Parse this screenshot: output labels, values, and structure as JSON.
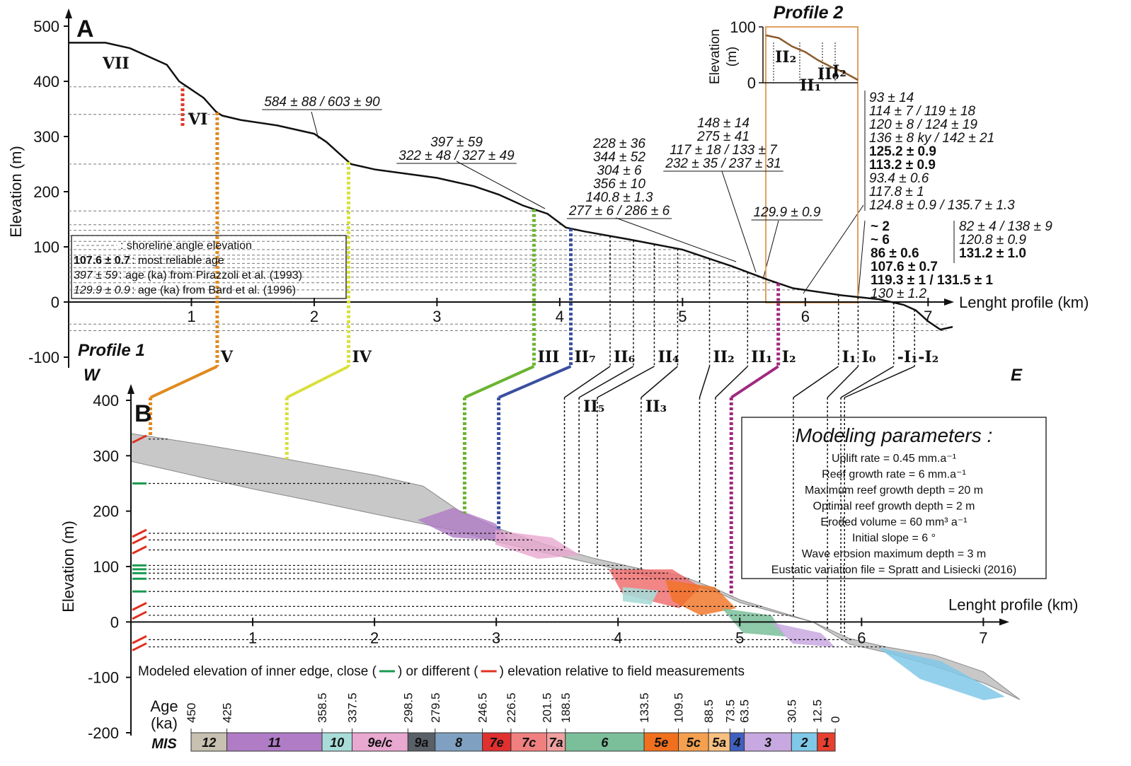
{
  "chart_data": [
    {
      "type": "line",
      "panel": "A",
      "name": "Profile 1",
      "color": "#111111",
      "x": [
        0,
        0.3,
        0.5,
        0.8,
        0.9,
        1.0,
        1.1,
        1.2,
        1.25,
        1.4,
        1.7,
        2.0,
        2.1,
        2.2,
        2.3,
        2.5,
        3.0,
        3.3,
        3.5,
        3.7,
        3.9,
        4.05,
        4.2,
        4.6,
        5.0,
        5.4,
        5.7,
        5.9,
        6.3,
        6.6,
        6.8,
        6.9,
        7.0,
        7.1,
        7.2
      ],
      "values": [
        470,
        470,
        460,
        430,
        400,
        385,
        370,
        345,
        338,
        330,
        320,
        305,
        290,
        270,
        250,
        240,
        225,
        210,
        195,
        175,
        160,
        135,
        128,
        112,
        95,
        65,
        40,
        25,
        12,
        5,
        -5,
        -15,
        -35,
        -50,
        -45
      ],
      "xlim": [
        0,
        7.2
      ],
      "ylim": [
        -100,
        500
      ],
      "xticks": [
        1,
        2,
        3,
        4,
        5,
        6,
        7
      ],
      "yticks": [
        -100,
        0,
        100,
        200,
        300,
        400,
        500
      ],
      "y_label": "Elevation (m)",
      "x_label": "Lenght profile (km)",
      "directions": [
        "W",
        "E"
      ],
      "shoreline_angles": [
        390,
        340,
        250,
        165,
        140,
        130,
        120,
        110,
        95,
        85,
        78,
        70,
        62,
        55,
        45,
        35,
        22,
        -40,
        -52
      ],
      "terrace_labels": [
        {
          "label": "VII",
          "color": "#111111"
        },
        {
          "label": "VI",
          "color": "#e03a2a"
        }
      ],
      "terraces": [
        {
          "label": "V",
          "x_a": 1.21,
          "x_b": 0.16,
          "color": "#e08a1e"
        },
        {
          "label": "IV",
          "x_a": 2.28,
          "x_b": 1.28,
          "color": "#d8e03a"
        },
        {
          "label": "III",
          "x_a": 3.79,
          "x_b": 2.74,
          "color": "#6ab42e"
        },
        {
          "label": "II₇",
          "x_a": 4.09,
          "x_b": 3.02,
          "color": "#3a4fa0"
        },
        {
          "label": "II₆",
          "x_a": 4.41,
          "x_b": 3.56,
          "color": "#111111"
        },
        {
          "label": "II₅",
          "x_a": 4.6,
          "x_b": 3.68,
          "color": "#111111"
        },
        {
          "label": "II₄",
          "x_a": 4.77,
          "x_b": 3.83,
          "color": "#111111"
        },
        {
          "label": "II₃",
          "x_a": 4.96,
          "x_b": 4.19,
          "color": "#111111"
        },
        {
          "label": "II₂",
          "x_a": 5.22,
          "x_b": 4.67,
          "color": "#111111"
        },
        {
          "label": "II₁",
          "x_a": 5.53,
          "x_b": 4.8,
          "color": "#111111"
        },
        {
          "label": "I₂",
          "x_a": 5.78,
          "x_b": 4.93,
          "color": "#a0287f"
        },
        {
          "label": "I₁",
          "x_a": 6.27,
          "x_b": 5.44,
          "color": "#111111"
        },
        {
          "label": "I₀",
          "x_a": 6.43,
          "x_b": 5.72,
          "color": "#111111"
        },
        {
          "label": "-I₁",
          "x_a": 6.72,
          "x_b": 5.83,
          "color": "#111111"
        },
        {
          "label": "-I₂",
          "x_a": 6.89,
          "x_b": 5.86,
          "color": "#111111"
        }
      ],
      "ages": [
        {
          "lines": [
            {
              "text": "584 ± 88 / 603 ± 90",
              "color": "#3b2d8c",
              "bold": false
            }
          ]
        },
        {
          "lines": [
            {
              "text": "397 ± 59",
              "color": "#3b2d8c",
              "bold": false
            },
            {
              "text": "322 ± 48 / 327 ± 49",
              "color": "#3b2d8c",
              "bold": false
            }
          ]
        },
        {
          "lines": [
            {
              "text": "228 ± 36",
              "color": "#3b2d8c",
              "bold": false
            },
            {
              "text": "344 ± 52",
              "color": "#3b2d8c",
              "bold": false
            },
            {
              "text": "304 ± 6",
              "color": "#4db32c",
              "bold": false
            },
            {
              "text": "356 ± 10",
              "color": "#4db32c",
              "bold": false
            },
            {
              "text": "140.8 ± 1.3",
              "color": "#4db32c",
              "bold": false
            },
            {
              "text": "277 ± 6 / 286 ± 6",
              "color": "#4db32c",
              "bold": false
            }
          ]
        },
        {
          "lines": [
            {
              "text": "148 ± 14",
              "color": "#3b2d8c",
              "bold": false
            },
            {
              "text": "275 ± 41",
              "color": "#3b2d8c",
              "bold": false
            },
            {
              "text": "117 ± 18 / 133 ± 7",
              "color": "#3b2d8c",
              "bold": false
            },
            {
              "text": "232 ± 35 / 237 ± 31",
              "color": "#3b2d8c",
              "bold": false
            }
          ]
        },
        {
          "lines": [
            {
              "text": "129.9 ± 0.9",
              "color": "#4db32c",
              "bold": false
            }
          ]
        },
        {
          "lines": [
            {
              "text": "93 ± 14",
              "color": "#3b2d8c",
              "bold": false
            },
            {
              "text": "114 ± 7 / 119 ± 18",
              "color": "#3b2d8c",
              "bold": false
            },
            {
              "text": "120 ± 8 / 124 ± 19",
              "color": "#3b2d8c",
              "bold": false
            },
            {
              "text": "136 ± 8 ky / 142 ± 21",
              "color": "#3b2d8c",
              "bold": false
            },
            {
              "text": "125.2 ± 0.9",
              "color": "#4db32c",
              "bold": true
            },
            {
              "text": "113.2 ± 0.9",
              "color": "#4db32c",
              "bold": true
            },
            {
              "text": "93.4 ± 0.6",
              "color": "#4db32c",
              "bold": false
            },
            {
              "text": "117.8 ± 1",
              "color": "#4db32c",
              "bold": false
            },
            {
              "text": "124.8 ± 0.9 / 135.7 ± 1.3",
              "color": "#4db32c",
              "bold": false
            }
          ]
        },
        {
          "lines": [
            {
              "text": "~ 2",
              "color": "#4db32c",
              "bold": true
            },
            {
              "text": "~ 6",
              "color": "#4db32c",
              "bold": true
            },
            {
              "text": "86 ± 0.6",
              "color": "#4db32c",
              "bold": true
            },
            {
              "text": "107.6 ± 0.7",
              "color": "#4db32c",
              "bold": true
            },
            {
              "text": "119.3 ± 1 / 131.5 ± 1",
              "color": "#4db32c",
              "bold": true
            },
            {
              "text": "130 ± 1.2",
              "color": "#4db32c",
              "bold": false
            }
          ]
        },
        {
          "lines": [
            {
              "text": "82 ± 4 / 138 ± 9",
              "color": "#3b2d8c",
              "bold": false
            },
            {
              "text": "120.8 ± 0.9",
              "color": "#4db32c",
              "bold": false
            },
            {
              "text": "131.2 ± 1.0",
              "color": "#4db32c",
              "bold": true
            }
          ]
        }
      ],
      "legend": [
        {
          "text": ": shoreline angle elevation"
        },
        {
          "sample": "107.6 ± 0.7",
          "text": " : most reliable age"
        },
        {
          "sample": "397 ± 59",
          "text": " : age (ka) from Pirazzoli et al. (1993)"
        },
        {
          "sample": "129.9 ± 0.9",
          "text": " : age (ka) from Bard et al. (1996)"
        }
      ]
    },
    {
      "type": "line",
      "panel": "inset",
      "title": "Profile 2",
      "color": "#8b5a2b",
      "values": [
        85,
        80,
        65,
        55,
        40,
        28,
        18,
        5
      ],
      "ylim": [
        0,
        100
      ],
      "yticks": [
        0,
        100
      ],
      "y_label": [
        "Elevation",
        "(m)"
      ],
      "terrace_labels": [
        {
          "label": "II₂",
          "color": "#f0a8a8"
        },
        {
          "label": "II₁",
          "color": "#f07f3a"
        },
        {
          "label": "II₀",
          "color": "#f07f3a"
        },
        {
          "label": "I₂",
          "color": "#f07f3a"
        }
      ]
    },
    {
      "type": "area",
      "panel": "B",
      "color": "#c8c8c8",
      "x": [
        0,
        0.3,
        0.6,
        1.0,
        1.5,
        2.0,
        2.4,
        2.5,
        2.7,
        3.0,
        3.4,
        3.8,
        4.2,
        4.5,
        4.8,
        5.0,
        5.3,
        5.6,
        5.9,
        6.2,
        6.6,
        7.0,
        7.3
      ],
      "upper": [
        340,
        330,
        320,
        305,
        285,
        265,
        245,
        230,
        200,
        170,
        140,
        115,
        95,
        85,
        60,
        40,
        20,
        0,
        -30,
        -45,
        -60,
        -90,
        -140
      ],
      "lower": [
        290,
        275,
        260,
        240,
        218,
        195,
        177,
        172,
        163,
        145,
        125,
        105,
        85,
        72,
        55,
        35,
        17,
        0,
        -40,
        -55,
        -80,
        -110,
        -140
      ],
      "xlim": [
        0,
        7.3
      ],
      "ylim": [
        -200,
        400
      ],
      "xticks": [
        1,
        2,
        3,
        4,
        5,
        6,
        7
      ],
      "yticks": [
        -200,
        -100,
        0,
        100,
        200,
        300,
        400
      ],
      "y_label": "Elevation (m)",
      "x_label": "Lenght profile (km)",
      "inner_edges": [
        {
          "elevation": 330,
          "close": false
        },
        {
          "elevation": 250,
          "close": true
        },
        {
          "elevation": 160,
          "close": false
        },
        {
          "elevation": 148,
          "close": false
        },
        {
          "elevation": 130,
          "close": false
        },
        {
          "elevation": 102,
          "close": true
        },
        {
          "elevation": 95,
          "close": true
        },
        {
          "elevation": 88,
          "close": true
        },
        {
          "elevation": 78,
          "close": true
        },
        {
          "elevation": 55,
          "close": true
        },
        {
          "elevation": 28,
          "close": false
        },
        {
          "elevation": 12,
          "close": false
        },
        {
          "elevation": -32,
          "close": false
        },
        {
          "elevation": -45,
          "close": false
        }
      ],
      "edge_legend": [
        "Modeled elevation of inner edge, close (",
        ") or different (",
        ") elevation relative to field measurements"
      ],
      "parameters": {
        "title": "Modeling parameters :",
        "lines": [
          "Uplift rate = 0.45 mm.a⁻¹",
          "Reef growth rate = 6 mm.a⁻¹",
          "Maximum reef growth depth = 20 m",
          "Optimal reef growth depth = 2 m",
          "Eroded volume = 60 mm³ a⁻¹",
          "Initial slope = 6 °",
          "Wave erosion maximum depth = 3 m",
          "Eustatic variation file = Spratt and Lisiecki (2016)"
        ]
      },
      "age_label": [
        "Age",
        "(ka)"
      ],
      "mis_label": "MIS",
      "ages": [
        450,
        425,
        358.5,
        337.5,
        298.5,
        279.5,
        246.5,
        226.5,
        201.5,
        188.5,
        133.5,
        109.5,
        88.5,
        73.5,
        63.5,
        30.5,
        12.5,
        0
      ],
      "stages": [
        {
          "label": "12",
          "color": "#c8c0b0"
        },
        {
          "label": "11",
          "color": "#b07cc6"
        },
        {
          "label": "10",
          "color": "#a8dcd8"
        },
        {
          "label": "9e/c",
          "color": "#e8a8d0"
        },
        {
          "label": "9a",
          "color": "#5a6068"
        },
        {
          "label": "8",
          "color": "#7fa0c0"
        },
        {
          "label": "7e",
          "color": "#e03030"
        },
        {
          "label": "7c",
          "color": "#f08080"
        },
        {
          "label": "7a",
          "color": "#f0a0a0"
        },
        {
          "label": "6",
          "color": "#7abf9a"
        },
        {
          "label": "5e",
          "color": "#f07020"
        },
        {
          "label": "5c",
          "color": "#f5a050"
        },
        {
          "label": "5a",
          "color": "#f8c080"
        },
        {
          "label": "4",
          "color": "#4060c0"
        },
        {
          "label": "3",
          "color": "#c8a8e0"
        },
        {
          "label": "2",
          "color": "#80c8e8"
        },
        {
          "label": "1",
          "color": "#e84030"
        }
      ]
    }
  ]
}
